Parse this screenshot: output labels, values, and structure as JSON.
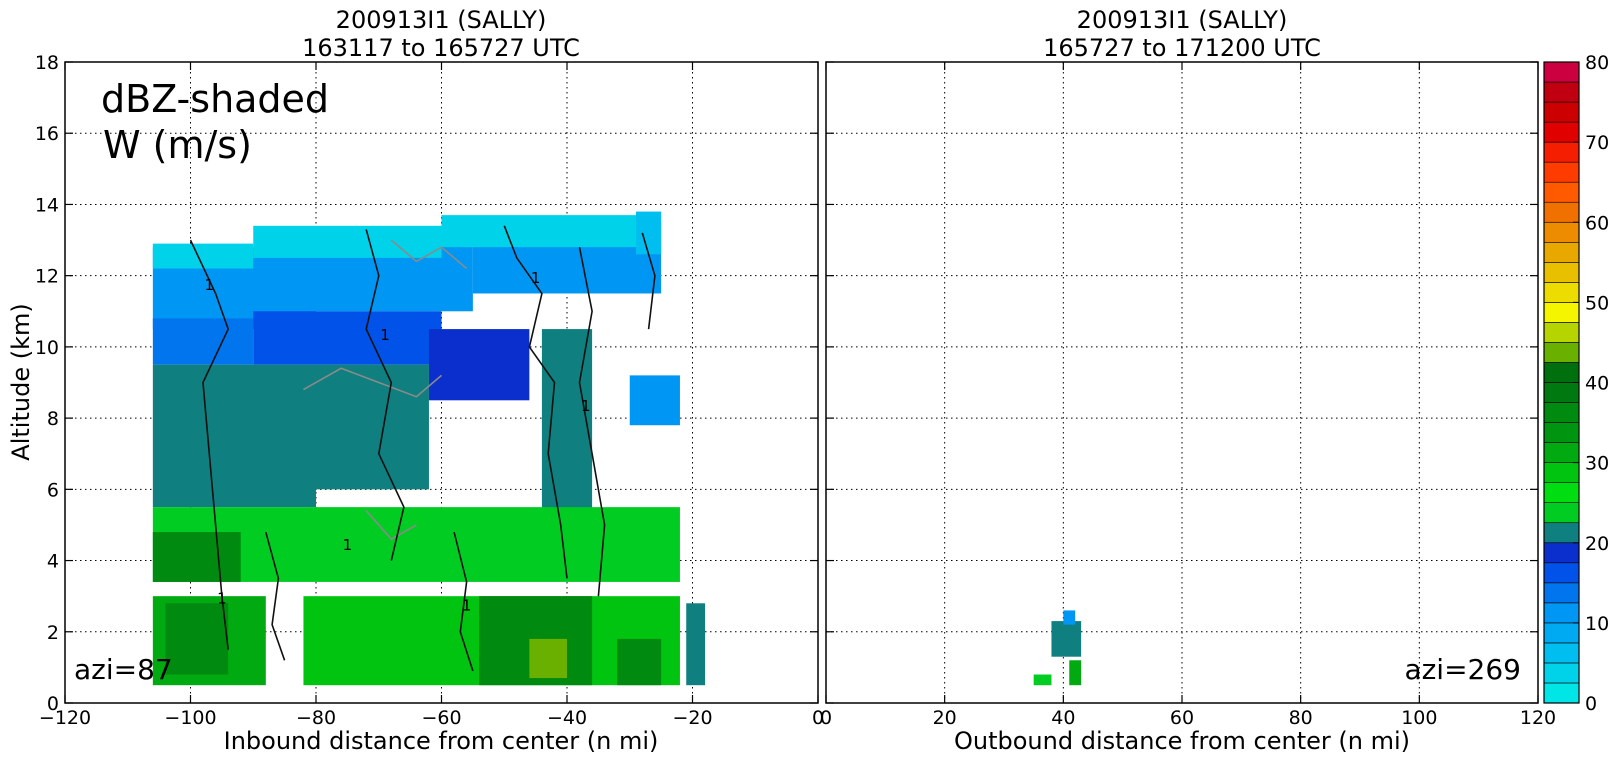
{
  "chart_data": [
    {
      "type": "heatmap",
      "title_line1": "200913I1 (SALLY)",
      "title_line2": "163117 to 165727 UTC",
      "xlabel": "Inbound distance from center (n mi)",
      "ylabel": "Altitude (km)",
      "xlim": [
        -120,
        0
      ],
      "ylim": [
        0,
        18
      ],
      "xticks": [
        "−120",
        "−100",
        "−80",
        "−60",
        "−40",
        "−20",
        "0"
      ],
      "xtick_values": [
        -120,
        -100,
        -80,
        -60,
        -40,
        -20,
        0
      ],
      "yticks": [
        "0",
        "2",
        "4",
        "6",
        "8",
        "10",
        "12",
        "14",
        "16",
        "18"
      ],
      "ytick_values": [
        0,
        2,
        4,
        6,
        8,
        10,
        12,
        14,
        16,
        18
      ],
      "grid": true,
      "annotation_line1": "dBZ-shaded",
      "annotation_line2": "W (m/s)",
      "azimuth_label": "azi=87",
      "contour_label": "1",
      "regions": [
        {
          "x": [
            -106,
            -80
          ],
          "y": [
            10.5,
            12.8
          ],
          "dbz": 11
        },
        {
          "x": [
            -80,
            -55
          ],
          "y": [
            11,
            13.2
          ],
          "dbz": 12
        },
        {
          "x": [
            -55,
            -25
          ],
          "y": [
            11.5,
            13.5
          ],
          "dbz": 11
        },
        {
          "x": [
            -106,
            -90
          ],
          "y": [
            12.2,
            12.9
          ],
          "dbz": 4
        },
        {
          "x": [
            -90,
            -60
          ],
          "y": [
            12.5,
            13.4
          ],
          "dbz": 4
        },
        {
          "x": [
            -60,
            -26
          ],
          "y": [
            12.8,
            13.7
          ],
          "dbz": 4
        },
        {
          "x": [
            -29,
            -25
          ],
          "y": [
            12.6,
            13.8
          ],
          "dbz": 6
        },
        {
          "x": [
            -106,
            -90
          ],
          "y": [
            9.5,
            10.8
          ],
          "dbz": 14
        },
        {
          "x": [
            -90,
            -60
          ],
          "y": [
            9.5,
            11
          ],
          "dbz": 16
        },
        {
          "x": [
            -106,
            -80
          ],
          "y": [
            5.5,
            9.5
          ],
          "dbz": 22
        },
        {
          "x": [
            -80,
            -62
          ],
          "y": [
            6,
            9.5
          ],
          "dbz": 20
        },
        {
          "x": [
            -62,
            -46
          ],
          "y": [
            8.5,
            10.5
          ],
          "dbz": 18
        },
        {
          "x": [
            -44,
            -36
          ],
          "y": [
            3.5,
            10.5
          ],
          "dbz": 21
        },
        {
          "x": [
            -106,
            -22
          ],
          "y": [
            3.4,
            5.5
          ],
          "dbz": 24
        },
        {
          "x": [
            -106,
            -92
          ],
          "y": [
            3.4,
            4.8
          ],
          "dbz": 36
        },
        {
          "x": [
            -106,
            -88
          ],
          "y": [
            0.5,
            3
          ],
          "dbz": 30
        },
        {
          "x": [
            -104,
            -94
          ],
          "y": [
            0.8,
            2.8
          ],
          "dbz": 36
        },
        {
          "x": [
            -82,
            -22
          ],
          "y": [
            0.5,
            3
          ],
          "dbz": 28
        },
        {
          "x": [
            -54,
            -36
          ],
          "y": [
            0.5,
            3
          ],
          "dbz": 37
        },
        {
          "x": [
            -46,
            -40
          ],
          "y": [
            0.7,
            1.8
          ],
          "dbz": 44
        },
        {
          "x": [
            -32,
            -25
          ],
          "y": [
            0.5,
            1.8
          ],
          "dbz": 36
        },
        {
          "x": [
            -30,
            -22
          ],
          "y": [
            7.8,
            9.2
          ],
          "dbz": 10
        },
        {
          "x": [
            -21,
            -18
          ],
          "y": [
            0.5,
            2.8
          ],
          "dbz": 22
        }
      ]
    },
    {
      "type": "heatmap",
      "title_line1": "200913I1 (SALLY)",
      "title_line2": "165727 to 171200 UTC",
      "xlabel": "Outbound distance from center (n mi)",
      "xlim": [
        0,
        120
      ],
      "ylim": [
        0,
        18
      ],
      "xticks": [
        "0",
        "20",
        "40",
        "60",
        "80",
        "100",
        "120"
      ],
      "xtick_values": [
        0,
        20,
        40,
        60,
        80,
        100,
        120
      ],
      "grid": true,
      "azimuth_label": "azi=269",
      "regions": [
        {
          "x": [
            38,
            43
          ],
          "y": [
            1.3,
            2.3
          ],
          "dbz": 20
        },
        {
          "x": [
            40,
            42
          ],
          "y": [
            2.2,
            2.6
          ],
          "dbz": 11
        },
        {
          "x": [
            35,
            38
          ],
          "y": [
            0.5,
            0.8
          ],
          "dbz": 23
        },
        {
          "x": [
            41,
            43
          ],
          "y": [
            0.5,
            1.2
          ],
          "dbz": 30
        }
      ]
    }
  ],
  "colorbar": {
    "min": 0,
    "max": 80,
    "step": 2.5,
    "ticks": [
      "0",
      "10",
      "20",
      "30",
      "40",
      "50",
      "60",
      "70",
      "80"
    ],
    "tick_values": [
      0,
      10,
      20,
      30,
      40,
      50,
      60,
      70,
      80
    ],
    "colors": [
      "#00e5e5",
      "#00d2ea",
      "#00bff0",
      "#00aaf2",
      "#0096f4",
      "#0075ee",
      "#0052e8",
      "#0a2fcc",
      "#0f7f7f",
      "#00cc22",
      "#00dd11",
      "#00c410",
      "#00aa10",
      "#009510",
      "#008a10",
      "#007a10",
      "#00700e",
      "#6ab000",
      "#b5d400",
      "#f5f500",
      "#ecdc00",
      "#e8c000",
      "#e8a800",
      "#ee8c00",
      "#f07000",
      "#ff5a00",
      "#ff3c00",
      "#f51e00",
      "#e00000",
      "#cc0000",
      "#c00010",
      "#cc0040",
      "#dd0090",
      "#e810e0",
      "#cc40dd",
      "#b055cc",
      "#8a44aa",
      "#442255",
      "#000000"
    ]
  }
}
